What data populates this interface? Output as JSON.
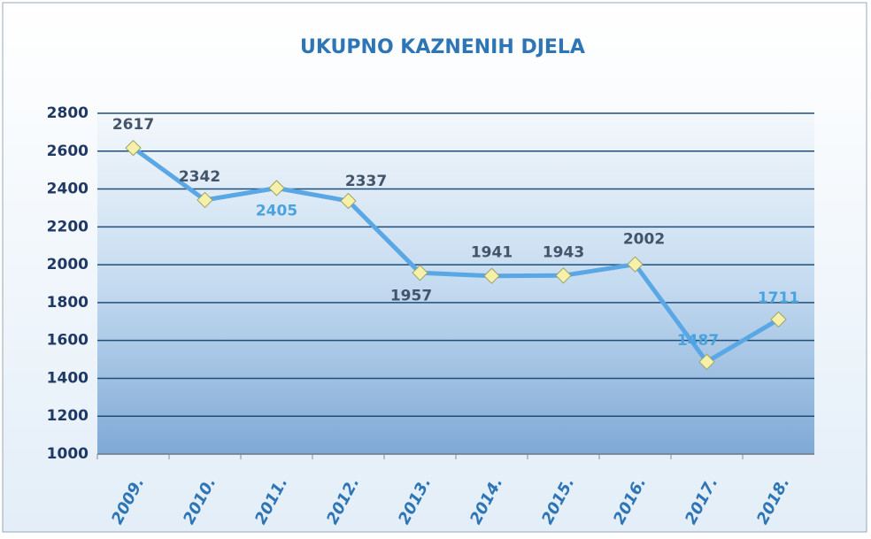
{
  "chart_data": {
    "type": "line",
    "title": "UKUPNO KAZNENIH DJELA",
    "categories": [
      "2009.",
      "2010.",
      "2011.",
      "2012.",
      "2013.",
      "2014.",
      "2015.",
      "2016.",
      "2017.",
      "2018."
    ],
    "values": [
      2617,
      2342,
      2405,
      2337,
      1957,
      1941,
      1943,
      2002,
      1487,
      1711
    ],
    "color": "#5aa7e6",
    "marker_color": "#f7f0a8",
    "ylim": [
      1000,
      2800
    ],
    "yticks": [
      1000,
      1200,
      1400,
      1600,
      1800,
      2000,
      2200,
      2400,
      2600,
      2800
    ],
    "grid": true
  }
}
